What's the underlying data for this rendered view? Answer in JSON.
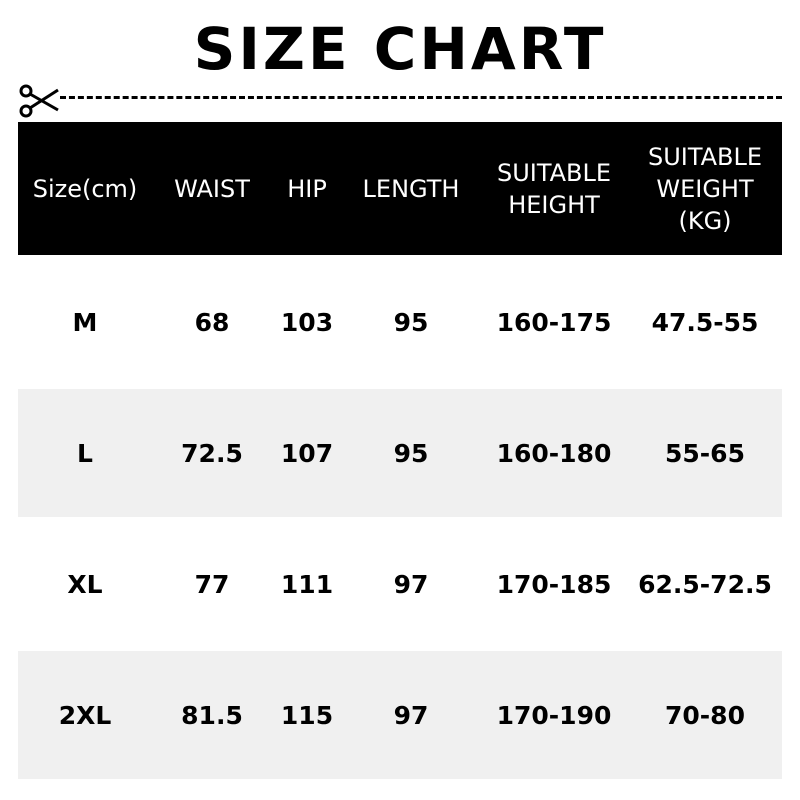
{
  "title": "SIZE CHART",
  "icons": {
    "cut": "scissors-icon"
  },
  "table": {
    "headers": [
      "Size(cm)",
      "WAIST",
      "HIP",
      "LENGTH",
      "SUITABLE HEIGHT",
      "SUITABLE WEIGHT (KG)"
    ],
    "rows": [
      [
        "M",
        "68",
        "103",
        "95",
        "160-175",
        "47.5-55"
      ],
      [
        "L",
        "72.5",
        "107",
        "95",
        "160-180",
        "55-65"
      ],
      [
        "XL",
        "77",
        "111",
        "97",
        "170-185",
        "62.5-72.5"
      ],
      [
        "2XL",
        "81.5",
        "115",
        "97",
        "170-190",
        "70-80"
      ]
    ]
  },
  "colors": {
    "header_bg": "#000000",
    "header_text": "#ffffff",
    "alt_row": "#f0f0f0"
  }
}
